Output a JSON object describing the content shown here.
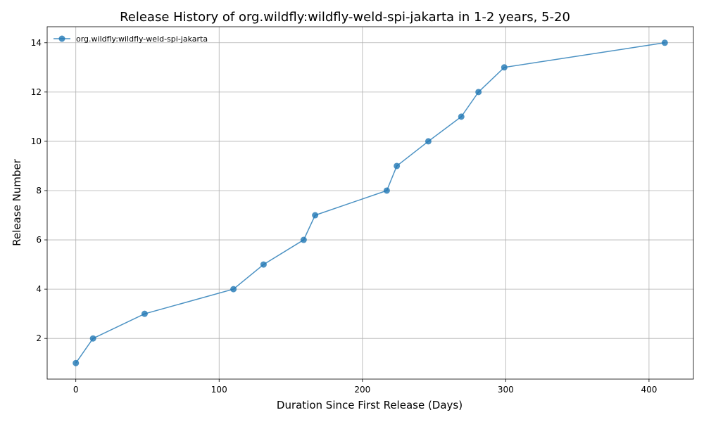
{
  "chart_data": {
    "type": "line",
    "title": "Release History of org.wildfly:wildfly-weld-spi-jakarta in 1-2 years, 5-20",
    "xlabel": "Duration Since First Release (Days)",
    "ylabel": "Release Number",
    "xlim": [
      -20,
      431
    ],
    "ylim": [
      0.35,
      14.65
    ],
    "xticks": [
      0,
      100,
      200,
      300,
      400
    ],
    "yticks": [
      2,
      4,
      6,
      8,
      10,
      12,
      14
    ],
    "grid": true,
    "legend_position": "top-left",
    "series": [
      {
        "name": "org.wildfly:wildfly-weld-spi-jakarta",
        "color": "#1f77b4",
        "marker": "circle",
        "x": [
          0,
          12,
          48,
          110,
          131,
          159,
          167,
          217,
          224,
          246,
          269,
          281,
          299,
          411
        ],
        "y": [
          1,
          2,
          3,
          4,
          5,
          6,
          7,
          8,
          9,
          10,
          11,
          12,
          13,
          14
        ]
      }
    ]
  }
}
